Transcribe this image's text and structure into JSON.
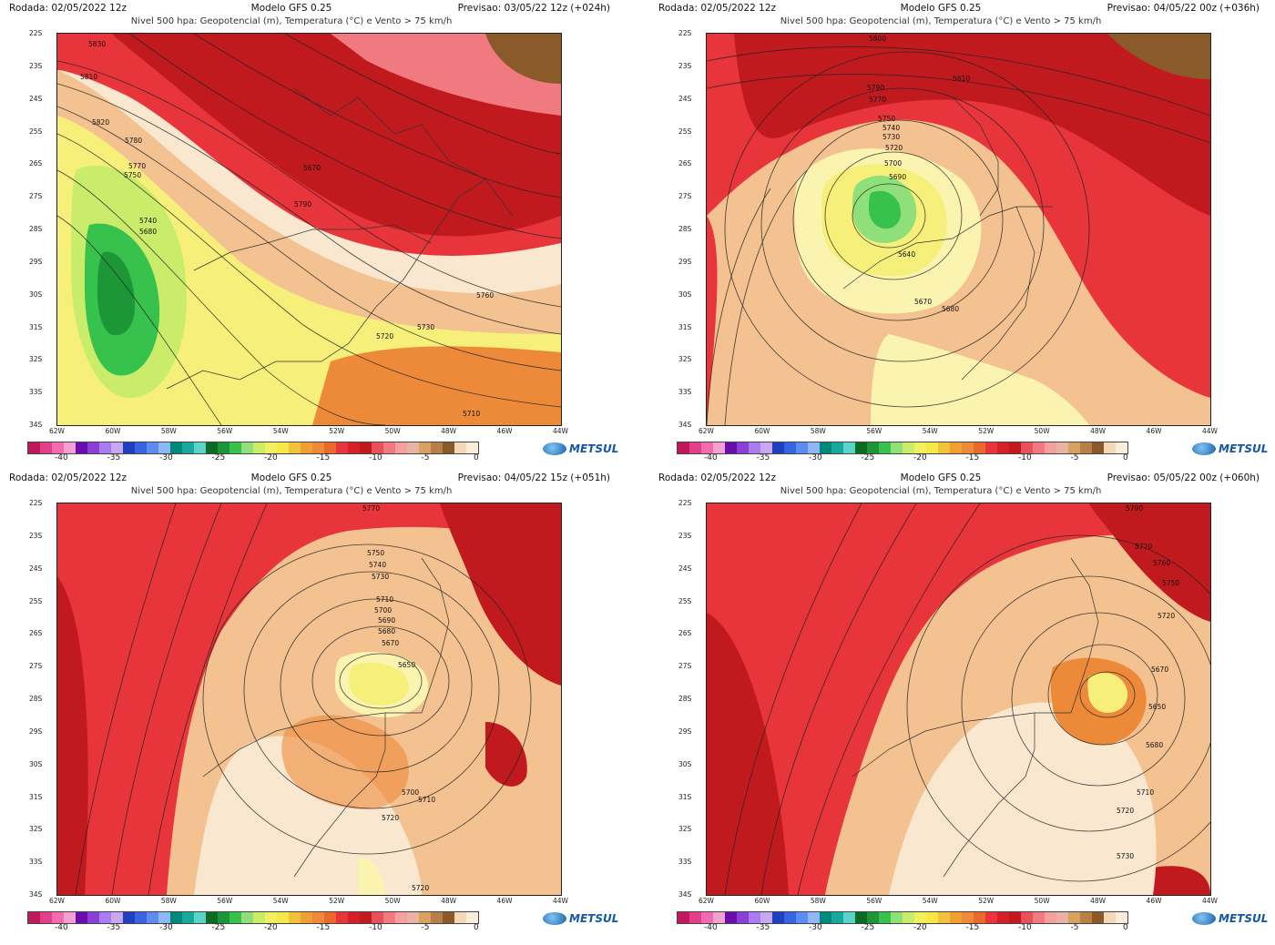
{
  "nivel": "Nivel 500 hpa: Geopotencial (m), Temperatura (°C) e Vento > 75 km/h",
  "logo": "METSUL",
  "colors": {
    "very_warm": "#f9e7d0",
    "warm": "#f4c190",
    "orange": "#ec8a3a",
    "red": "#e8343b",
    "dark_red": "#c01a1e",
    "yellow": "#f6f07a",
    "pale_yellow": "#fbf3b0",
    "green": "#35c04a",
    "dark_green": "#1a8f2e",
    "pink": "#f5a0a0",
    "brown": "#8b5a2b"
  },
  "y_labels": [
    "22S",
    "23S",
    "24S",
    "25S",
    "26S",
    "27S",
    "28S",
    "29S",
    "30S",
    "31S",
    "32S",
    "33S",
    "34S"
  ],
  "x_labels": [
    "62W",
    "60W",
    "58W",
    "56W",
    "54W",
    "52W",
    "50W",
    "48W",
    "46W",
    "44W"
  ],
  "colorbar": {
    "ticks": [
      "-40",
      "-35",
      "-30",
      "-25",
      "-20",
      "-15",
      "-10",
      "-5",
      "0"
    ],
    "colors": [
      "#c2185b",
      "#e04088",
      "#f06bb0",
      "#f4a0d0",
      "#6a0dad",
      "#8a3fd6",
      "#a97bf0",
      "#c8a8f5",
      "#1e3fbf",
      "#3566e0",
      "#5b8df0",
      "#8fb7f7",
      "#00897b",
      "#17a8a0",
      "#5bd3c8",
      "#0b6b24",
      "#1d9637",
      "#36c24c",
      "#8fe07a",
      "#c9ec6a",
      "#f0f060",
      "#f6e84a",
      "#f2c23d",
      "#f0a032",
      "#ec8a3a",
      "#e86a2c",
      "#e8343b",
      "#d62027",
      "#c01a1e",
      "#e8505a",
      "#f07a80",
      "#f5a0a0",
      "#e8b3a0",
      "#d9a060",
      "#b88048",
      "#8b5a2b",
      "#f4d8b8",
      "#faeeda"
    ]
  },
  "panels": [
    {
      "rodada": "Rodada: 02/05/2022 12z",
      "modelo": "Modelo GFS 0.25",
      "previsao": "Previsao: 03/05/22 12z (+024h)",
      "contour_labels": [
        "5830",
        "5810",
        "5820",
        "5780",
        "5770",
        "5750",
        "5740",
        "5680",
        "5670",
        "5790",
        "5730",
        "5720",
        "5710",
        "5760"
      ]
    },
    {
      "rodada": "Rodada: 02/05/2022 12z",
      "modelo": "Modelo GFS 0.25",
      "previsao": "Previsao: 04/05/22 00z (+036h)",
      "contour_labels": [
        "5800",
        "5790",
        "5770",
        "5750",
        "5740",
        "5730",
        "5720",
        "5700",
        "5690",
        "5640",
        "5670",
        "5680",
        "5810"
      ]
    },
    {
      "rodada": "Rodada: 02/05/2022 12z",
      "modelo": "Modelo GFS 0.25",
      "previsao": "Previsao: 04/05/22 15z (+051h)",
      "contour_labels": [
        "5770",
        "5750",
        "5740",
        "5730",
        "5710",
        "5700",
        "5690",
        "5680",
        "5670",
        "5650",
        "5700",
        "5710",
        "5720",
        "5720"
      ]
    },
    {
      "rodada": "Rodada: 02/05/2022 12z",
      "modelo": "Modelo GFS 0.25",
      "previsao": "Previsao: 05/05/22 00z (+060h)",
      "contour_labels": [
        "5790",
        "5770",
        "5760",
        "5750",
        "5720",
        "5670",
        "5650",
        "5680",
        "5710",
        "5720",
        "5730"
      ]
    }
  ]
}
